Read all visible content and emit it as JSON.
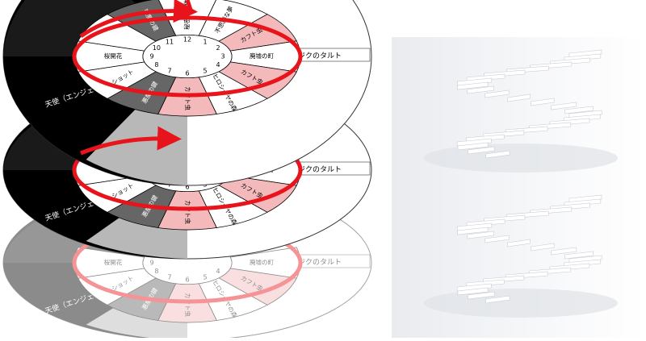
{
  "layers": [
    {
      "numbers": [
        "12",
        "1",
        "2",
        "3",
        "4",
        "5",
        "6",
        "7",
        "8",
        "9",
        "10",
        "11"
      ],
      "labels": {
        "s0": "秘密の事件",
        "s1": "不思議な夢",
        "s2": "カフト虫",
        "s3": "廃墟の町",
        "s4": "カフト虫",
        "s5": "ヒロシーヤの森",
        "s6": "カフト虫",
        "s7": "悪魔の鍵",
        "s8": "ショット",
        "s9": "桜開花",
        "s11": "悪魔の鍵"
      },
      "outer": {
        "right": "イチジクのタルト",
        "left": "天使（エンジェル）"
      }
    },
    {
      "numbers": [
        "",
        "",
        "",
        "",
        "4",
        "5",
        "6",
        "7",
        "8",
        "9",
        "",
        ""
      ],
      "labels": {
        "s3": "廃墟の町",
        "s4": "カフト虫",
        "s5": "ヒロシーヤの森",
        "s6": "カフト虫",
        "s7": "悪魔の鍵",
        "s8": "ショット",
        "s9": "桜開花"
      },
      "outer": {
        "right": "イチジクのタルト",
        "left": "天使（エンジェル）"
      }
    },
    {
      "numbers": [
        "",
        "",
        "",
        "",
        "4",
        "5",
        "6",
        "7",
        "8",
        "9",
        "",
        ""
      ],
      "labels": {
        "s3": "廃墟の町",
        "s4": "カフト虫",
        "s5": "ヒロシーヤの森",
        "s6": "カフト虫",
        "s7": "悪魔の鍵",
        "s8": "ショット",
        "s9": "桜開花"
      },
      "outer": {
        "right": "イチジクのタルト",
        "left": "天使（エンジェル）"
      }
    }
  ],
  "colors": {
    "ring": "#e8141b",
    "pink": "#f4b9bb",
    "dark": "#666666",
    "black": "#000000",
    "grey": "#b8b8b8"
  }
}
